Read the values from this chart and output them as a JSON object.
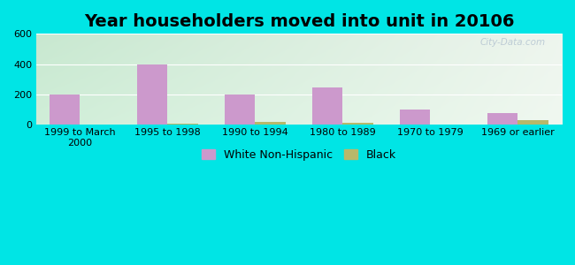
{
  "title": "Year householders moved into unit in 20106",
  "categories": [
    "1999 to March\n2000",
    "1995 to 1998",
    "1990 to 1994",
    "1980 to 1989",
    "1970 to 1979",
    "1969 or earlier"
  ],
  "white_values": [
    200,
    400,
    200,
    245,
    100,
    75
  ],
  "black_values": [
    0,
    5,
    20,
    12,
    0,
    32
  ],
  "white_color": "#cc99cc",
  "black_color": "#b8b86a",
  "bg_outer": "#00e5e5",
  "bg_plot_topleft": "#c8e8d0",
  "bg_plot_topright": "#e8f0f0",
  "bg_plot_bottomleft": "#d8ecd8",
  "bg_plot_bottomright": "#f0f8f0",
  "ylim": [
    0,
    600
  ],
  "yticks": [
    0,
    200,
    400,
    600
  ],
  "bar_width": 0.35,
  "title_fontsize": 14,
  "tick_fontsize": 8,
  "legend_fontsize": 9,
  "watermark": "City-Data.com"
}
